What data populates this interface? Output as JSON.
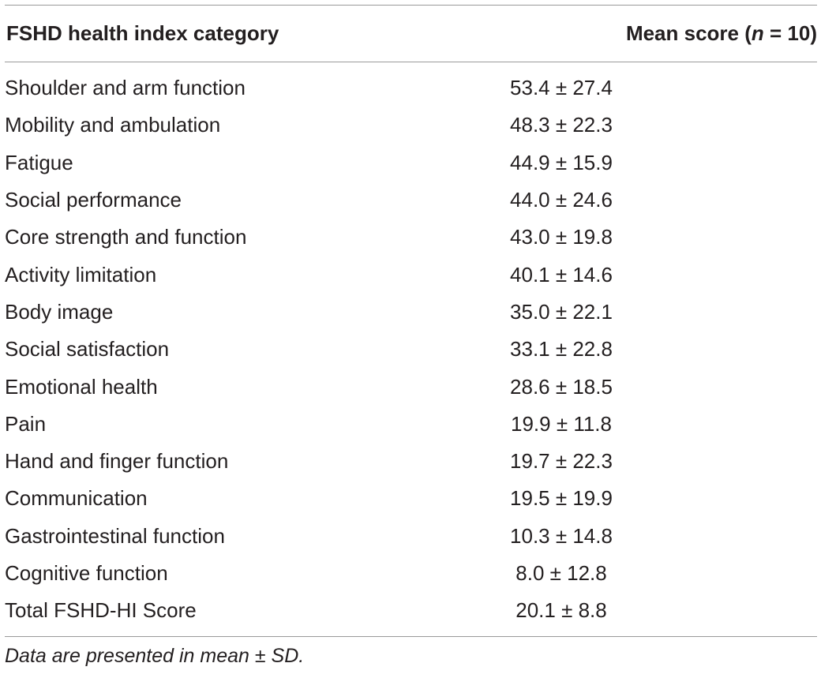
{
  "table": {
    "header": {
      "category": "FSHD health index category",
      "score_prefix": "Mean score (",
      "score_n": "n",
      "score_suffix": " = 10)"
    },
    "rows": [
      {
        "category": "Shoulder and arm function",
        "score": "53.4 ± 27.4"
      },
      {
        "category": "Mobility and ambulation",
        "score": "48.3 ± 22.3"
      },
      {
        "category": "Fatigue",
        "score": "44.9 ± 15.9"
      },
      {
        "category": "Social performance",
        "score": "44.0 ± 24.6"
      },
      {
        "category": "Core strength and function",
        "score": "43.0 ± 19.8"
      },
      {
        "category": "Activity limitation",
        "score": "40.1 ± 14.6"
      },
      {
        "category": "Body image",
        "score": "35.0 ± 22.1"
      },
      {
        "category": "Social satisfaction",
        "score": "33.1 ± 22.8"
      },
      {
        "category": "Emotional health",
        "score": "28.6 ± 18.5"
      },
      {
        "category": "Pain",
        "score": "19.9 ± 11.8"
      },
      {
        "category": "Hand and finger function",
        "score": "19.7 ± 22.3"
      },
      {
        "category": "Communication",
        "score": "19.5 ± 19.9"
      },
      {
        "category": "Gastrointestinal function",
        "score": "10.3 ± 14.8"
      },
      {
        "category": "Cognitive function",
        "score": "8.0 ± 12.8"
      },
      {
        "category": "Total FSHD-HI Score",
        "score": "20.1 ± 8.8"
      }
    ],
    "footnote": "Data are presented in mean ± SD."
  }
}
